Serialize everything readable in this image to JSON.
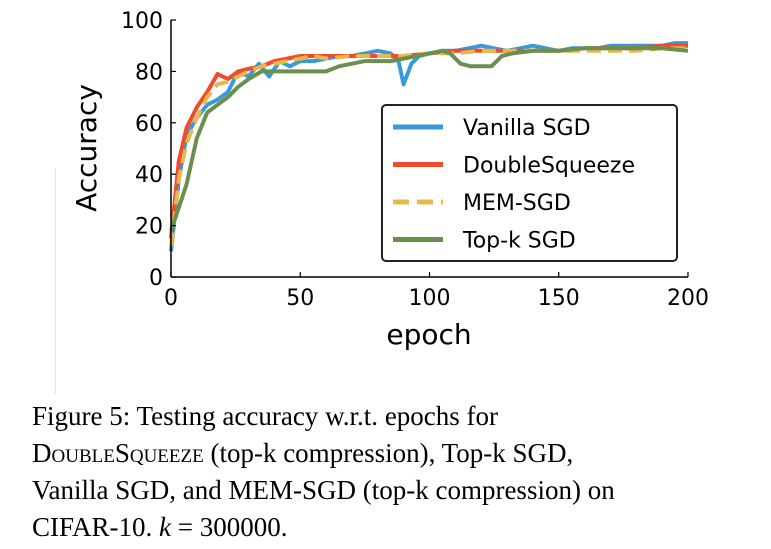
{
  "chart_data": {
    "type": "line",
    "title": "",
    "xlabel": "epoch",
    "ylabel": "Accuracy",
    "xlim": [
      0,
      200
    ],
    "ylim": [
      0,
      100
    ],
    "xticks": [
      0,
      50,
      100,
      150,
      200
    ],
    "yticks": [
      0,
      20,
      40,
      60,
      80,
      100
    ],
    "grid": false,
    "legend_position": "lower-right",
    "series": [
      {
        "name": "Vanilla SGD",
        "color": "#3a9ad9",
        "dash": "solid",
        "x": [
          0,
          3,
          6,
          10,
          14,
          18,
          22,
          26,
          30,
          34,
          38,
          42,
          46,
          50,
          55,
          60,
          65,
          70,
          75,
          80,
          85,
          88,
          90,
          93,
          96,
          100,
          105,
          110,
          115,
          120,
          125,
          130,
          135,
          140,
          145,
          150,
          155,
          160,
          165,
          170,
          175,
          180,
          185,
          190,
          195,
          200
        ],
        "y": [
          10,
          38,
          55,
          62,
          67,
          69,
          72,
          80,
          78,
          83,
          78,
          84,
          82,
          84,
          84,
          85,
          86,
          86,
          87,
          88,
          87,
          84,
          75,
          83,
          86,
          87,
          88,
          88,
          89,
          90,
          89,
          88,
          89,
          90,
          89,
          88,
          89,
          89,
          89,
          90,
          90,
          90,
          90,
          90,
          91,
          91
        ]
      },
      {
        "name": "DoubleSqueeze",
        "color": "#ee4c2c",
        "dash": "solid",
        "x": [
          0,
          3,
          6,
          10,
          14,
          18,
          22,
          26,
          30,
          35,
          40,
          45,
          50,
          55,
          60,
          70,
          80,
          90,
          100,
          110,
          120,
          130,
          140,
          150,
          160,
          170,
          180,
          190,
          200
        ],
        "y": [
          15,
          45,
          58,
          66,
          72,
          79,
          77,
          80,
          81,
          82,
          84,
          85,
          86,
          86,
          86,
          86,
          86,
          86,
          87,
          88,
          88,
          88,
          88,
          88,
          89,
          89,
          89,
          90,
          90
        ]
      },
      {
        "name": "MEM-SGD",
        "color": "#e8b84a",
        "dash": "dashed",
        "x": [
          0,
          3,
          6,
          10,
          14,
          18,
          22,
          26,
          30,
          35,
          40,
          45,
          50,
          55,
          60,
          70,
          80,
          90,
          100,
          110,
          120,
          130,
          140,
          150,
          160,
          170,
          180,
          190,
          200
        ],
        "y": [
          12,
          38,
          52,
          62,
          70,
          75,
          76,
          78,
          80,
          82,
          83,
          84,
          85,
          86,
          85,
          86,
          86,
          86,
          87,
          87,
          88,
          88,
          88,
          88,
          88,
          88,
          88,
          89,
          89
        ]
      },
      {
        "name": "Top-k SGD",
        "color": "#6a8f4e",
        "dash": "solid",
        "x": [
          0,
          3,
          6,
          10,
          14,
          18,
          22,
          26,
          30,
          35,
          40,
          45,
          50,
          55,
          60,
          65,
          70,
          75,
          80,
          85,
          90,
          95,
          100,
          105,
          108,
          112,
          116,
          120,
          124,
          128,
          132,
          140,
          150,
          160,
          170,
          180,
          190,
          200
        ],
        "y": [
          18,
          27,
          36,
          54,
          64,
          67,
          70,
          74,
          77,
          80,
          80,
          80,
          80,
          80,
          80,
          82,
          83,
          84,
          84,
          84,
          85,
          86,
          87,
          88,
          87,
          83,
          82,
          82,
          82,
          86,
          87,
          88,
          88,
          89,
          89,
          89,
          89,
          88
        ]
      }
    ]
  },
  "caption": {
    "line1": [
      "Figure",
      "5:",
      "Testing",
      "accuracy",
      "w.r.t.",
      "epochs",
      "for"
    ],
    "line2_sc": "DoubleSqueeze",
    "line2_rest": " (top-k compression), Top-k SGD,",
    "line3": "Vanilla SGD, and MEM-SGD (top-k compression) on",
    "line4_text": "CIFAR-10. ",
    "line4_var": "k",
    "line4_eq": " = 300000."
  }
}
